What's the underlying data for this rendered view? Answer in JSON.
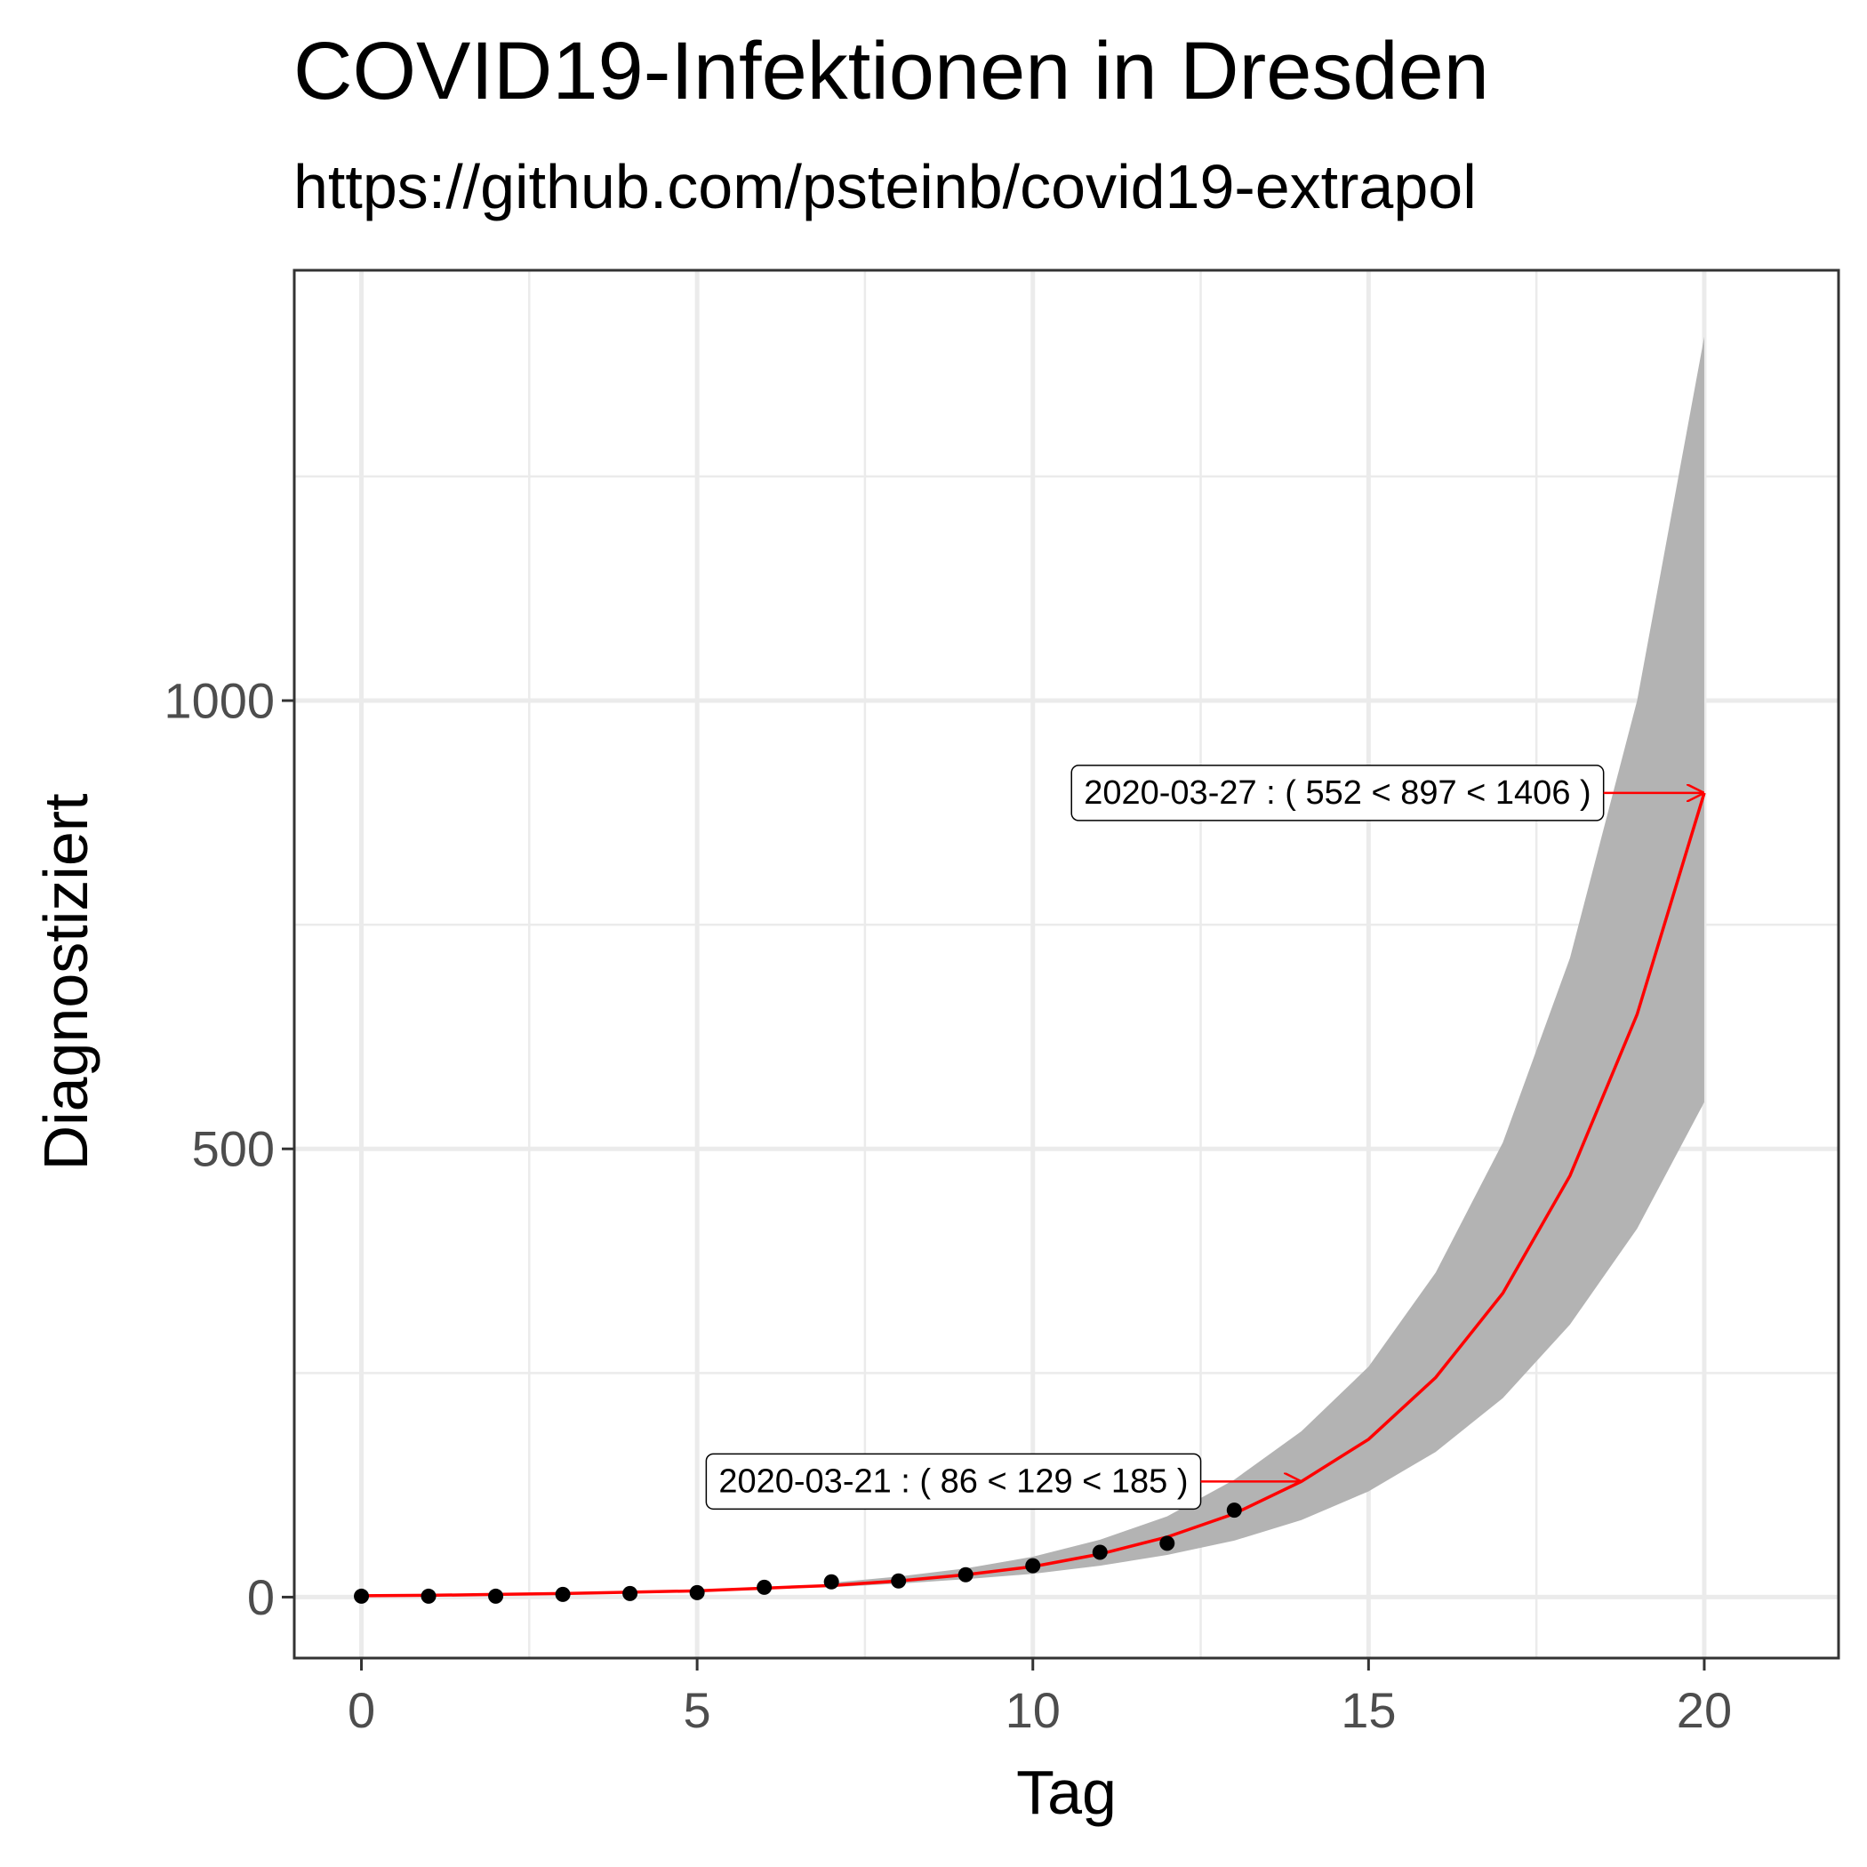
{
  "title": "COVID19-Infektionen in Dresden",
  "subtitle": "https://github.com/psteinb/covid19-extrapol",
  "chart_data": {
    "type": "line",
    "xlabel": "Tag",
    "ylabel": "Diagnostiziert",
    "xlim": [
      -1,
      22
    ],
    "ylim": [
      -68,
      1480
    ],
    "x_ticks": [
      0,
      5,
      10,
      15,
      20
    ],
    "y_ticks": [
      0,
      500,
      1000
    ],
    "grid": true,
    "observed": {
      "x": [
        0,
        1,
        2,
        3,
        4,
        5,
        6,
        7,
        8,
        9,
        10,
        11,
        12,
        13
      ],
      "y": [
        1,
        1,
        1,
        3,
        4,
        5,
        11,
        17,
        18,
        25,
        35,
        50,
        60,
        97
      ]
    },
    "fit": {
      "x": [
        0,
        1,
        2,
        3,
        4,
        5,
        6,
        7,
        8,
        9,
        10,
        11,
        12,
        13,
        14,
        15,
        16,
        17,
        18,
        19,
        20
      ],
      "y": [
        1.5,
        2,
        3,
        4,
        5.5,
        7,
        10,
        13,
        18,
        25,
        34,
        48,
        67,
        93,
        129,
        176,
        245,
        339,
        470,
        650,
        897
      ]
    },
    "band": {
      "x": [
        7,
        8,
        9,
        10,
        11,
        12,
        13,
        14,
        15,
        16,
        17,
        18,
        19,
        20
      ],
      "lower": [
        11,
        15,
        20,
        26,
        35,
        47,
        63,
        86,
        118,
        162,
        222,
        304,
        411,
        552
      ],
      "upper": [
        16,
        23,
        32,
        45,
        64,
        90,
        131,
        185,
        257,
        362,
        507,
        713,
        1000,
        1406
      ]
    },
    "colors": {
      "fit": "#ff0000",
      "band": "#b3b3b3",
      "points": "#000000",
      "grid": "#ebebeb",
      "panel_border": "#333333"
    },
    "annotations": [
      {
        "text": "2020-03-21 : ( 86 < 129 < 185 )",
        "x": 14,
        "y": 129
      },
      {
        "text": "2020-03-27 : ( 552 < 897 < 1406 )",
        "x": 20,
        "y": 897
      }
    ]
  }
}
